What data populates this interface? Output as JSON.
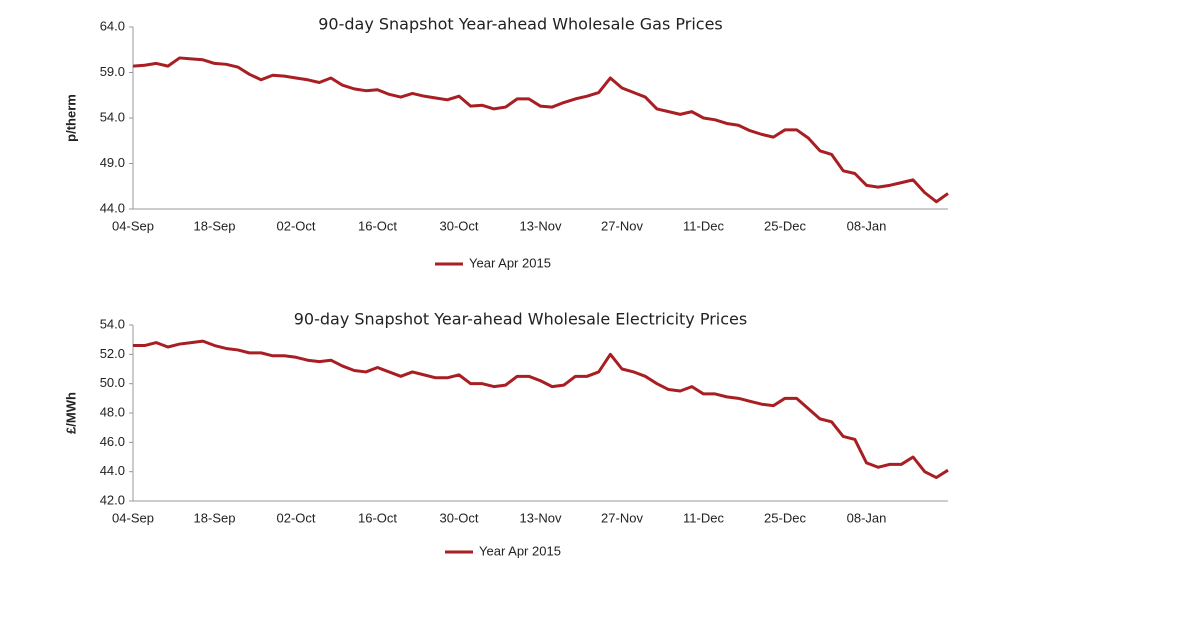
{
  "chart_data": [
    {
      "type": "line",
      "title": "90-day Snapshot Year-ahead Wholesale Gas Prices",
      "ylabel": "p/therm",
      "categories": [
        "04-Sep",
        null,
        null,
        null,
        null,
        null,
        null,
        "18-Sep",
        null,
        null,
        null,
        null,
        null,
        null,
        "02-Oct",
        null,
        null,
        null,
        null,
        null,
        null,
        "16-Oct",
        null,
        null,
        null,
        null,
        null,
        null,
        "30-Oct",
        null,
        null,
        null,
        null,
        null,
        null,
        "13-Nov",
        null,
        null,
        null,
        null,
        null,
        null,
        "27-Nov",
        null,
        null,
        null,
        null,
        null,
        null,
        "11-Dec",
        null,
        null,
        null,
        null,
        null,
        null,
        "25-Dec",
        null,
        null,
        null,
        null,
        null,
        null,
        "08-Jan",
        null,
        null,
        null,
        null,
        null,
        null,
        null
      ],
      "series": [
        {
          "name": "Year Apr 2015",
          "color": "#a81e22",
          "values": [
            59.7,
            59.8,
            60.0,
            59.7,
            60.6,
            60.5,
            60.4,
            60.0,
            59.9,
            59.6,
            58.8,
            58.2,
            58.7,
            58.6,
            58.4,
            58.2,
            57.9,
            58.4,
            57.6,
            57.2,
            57.0,
            57.1,
            56.6,
            56.3,
            56.7,
            56.4,
            56.2,
            56.0,
            56.4,
            55.3,
            55.4,
            55.0,
            55.2,
            56.1,
            56.1,
            55.3,
            55.2,
            55.7,
            56.1,
            56.4,
            56.8,
            58.4,
            57.3,
            56.8,
            56.3,
            55.0,
            54.7,
            54.4,
            54.7,
            54.0,
            53.8,
            53.4,
            53.2,
            52.6,
            52.2,
            51.9,
            52.7,
            52.7,
            51.8,
            50.4,
            50.0,
            48.2,
            47.9,
            46.6,
            46.4,
            46.6,
            46.9,
            47.2,
            45.8,
            44.8,
            45.7
          ]
        }
      ],
      "ylim": [
        44,
        64
      ],
      "yticks": [
        {
          "value": 44,
          "label": "44.0"
        },
        {
          "value": 49,
          "label": "49.0"
        },
        {
          "value": 54,
          "label": "54.0"
        },
        {
          "value": 59,
          "label": "59.0"
        },
        {
          "value": 64,
          "label": "64.0"
        }
      ],
      "grid": false,
      "legend": "bottom"
    },
    {
      "type": "line",
      "title": "90-day Snapshot Year-ahead Wholesale Electricity Prices",
      "ylabel": "£/MWh",
      "categories": [
        "04-Sep",
        null,
        null,
        null,
        null,
        null,
        null,
        "18-Sep",
        null,
        null,
        null,
        null,
        null,
        null,
        "02-Oct",
        null,
        null,
        null,
        null,
        null,
        null,
        "16-Oct",
        null,
        null,
        null,
        null,
        null,
        null,
        "30-Oct",
        null,
        null,
        null,
        null,
        null,
        null,
        "13-Nov",
        null,
        null,
        null,
        null,
        null,
        null,
        "27-Nov",
        null,
        null,
        null,
        null,
        null,
        null,
        "11-Dec",
        null,
        null,
        null,
        null,
        null,
        null,
        "25-Dec",
        null,
        null,
        null,
        null,
        null,
        null,
        "08-Jan",
        null,
        null,
        null,
        null,
        null,
        null,
        null
      ],
      "series": [
        {
          "name": "Year Apr 2015",
          "color": "#a81e22",
          "values": [
            52.6,
            52.6,
            52.8,
            52.5,
            52.7,
            52.8,
            52.9,
            52.6,
            52.4,
            52.3,
            52.1,
            52.1,
            51.9,
            51.9,
            51.8,
            51.6,
            51.5,
            51.6,
            51.2,
            50.9,
            50.8,
            51.1,
            50.8,
            50.5,
            50.8,
            50.6,
            50.4,
            50.4,
            50.6,
            50.0,
            50.0,
            49.8,
            49.9,
            50.5,
            50.5,
            50.2,
            49.8,
            49.9,
            50.5,
            50.5,
            50.8,
            52.0,
            51.0,
            50.8,
            50.5,
            50.0,
            49.6,
            49.5,
            49.8,
            49.3,
            49.3,
            49.1,
            49.0,
            48.8,
            48.6,
            48.5,
            49.0,
            49.0,
            48.3,
            47.6,
            47.4,
            46.4,
            46.2,
            44.6,
            44.3,
            44.5,
            44.5,
            45.0,
            44.0,
            43.6,
            44.1
          ]
        }
      ],
      "ylim": [
        42,
        54
      ],
      "yticks": [
        {
          "value": 42,
          "label": "42.0"
        },
        {
          "value": 44,
          "label": "44.0"
        },
        {
          "value": 46,
          "label": "46.0"
        },
        {
          "value": 48,
          "label": "48.0"
        },
        {
          "value": 50,
          "label": "50.0"
        },
        {
          "value": 52,
          "label": "52.0"
        },
        {
          "value": 54,
          "label": "54.0"
        }
      ],
      "grid": false,
      "legend": "bottom"
    }
  ]
}
